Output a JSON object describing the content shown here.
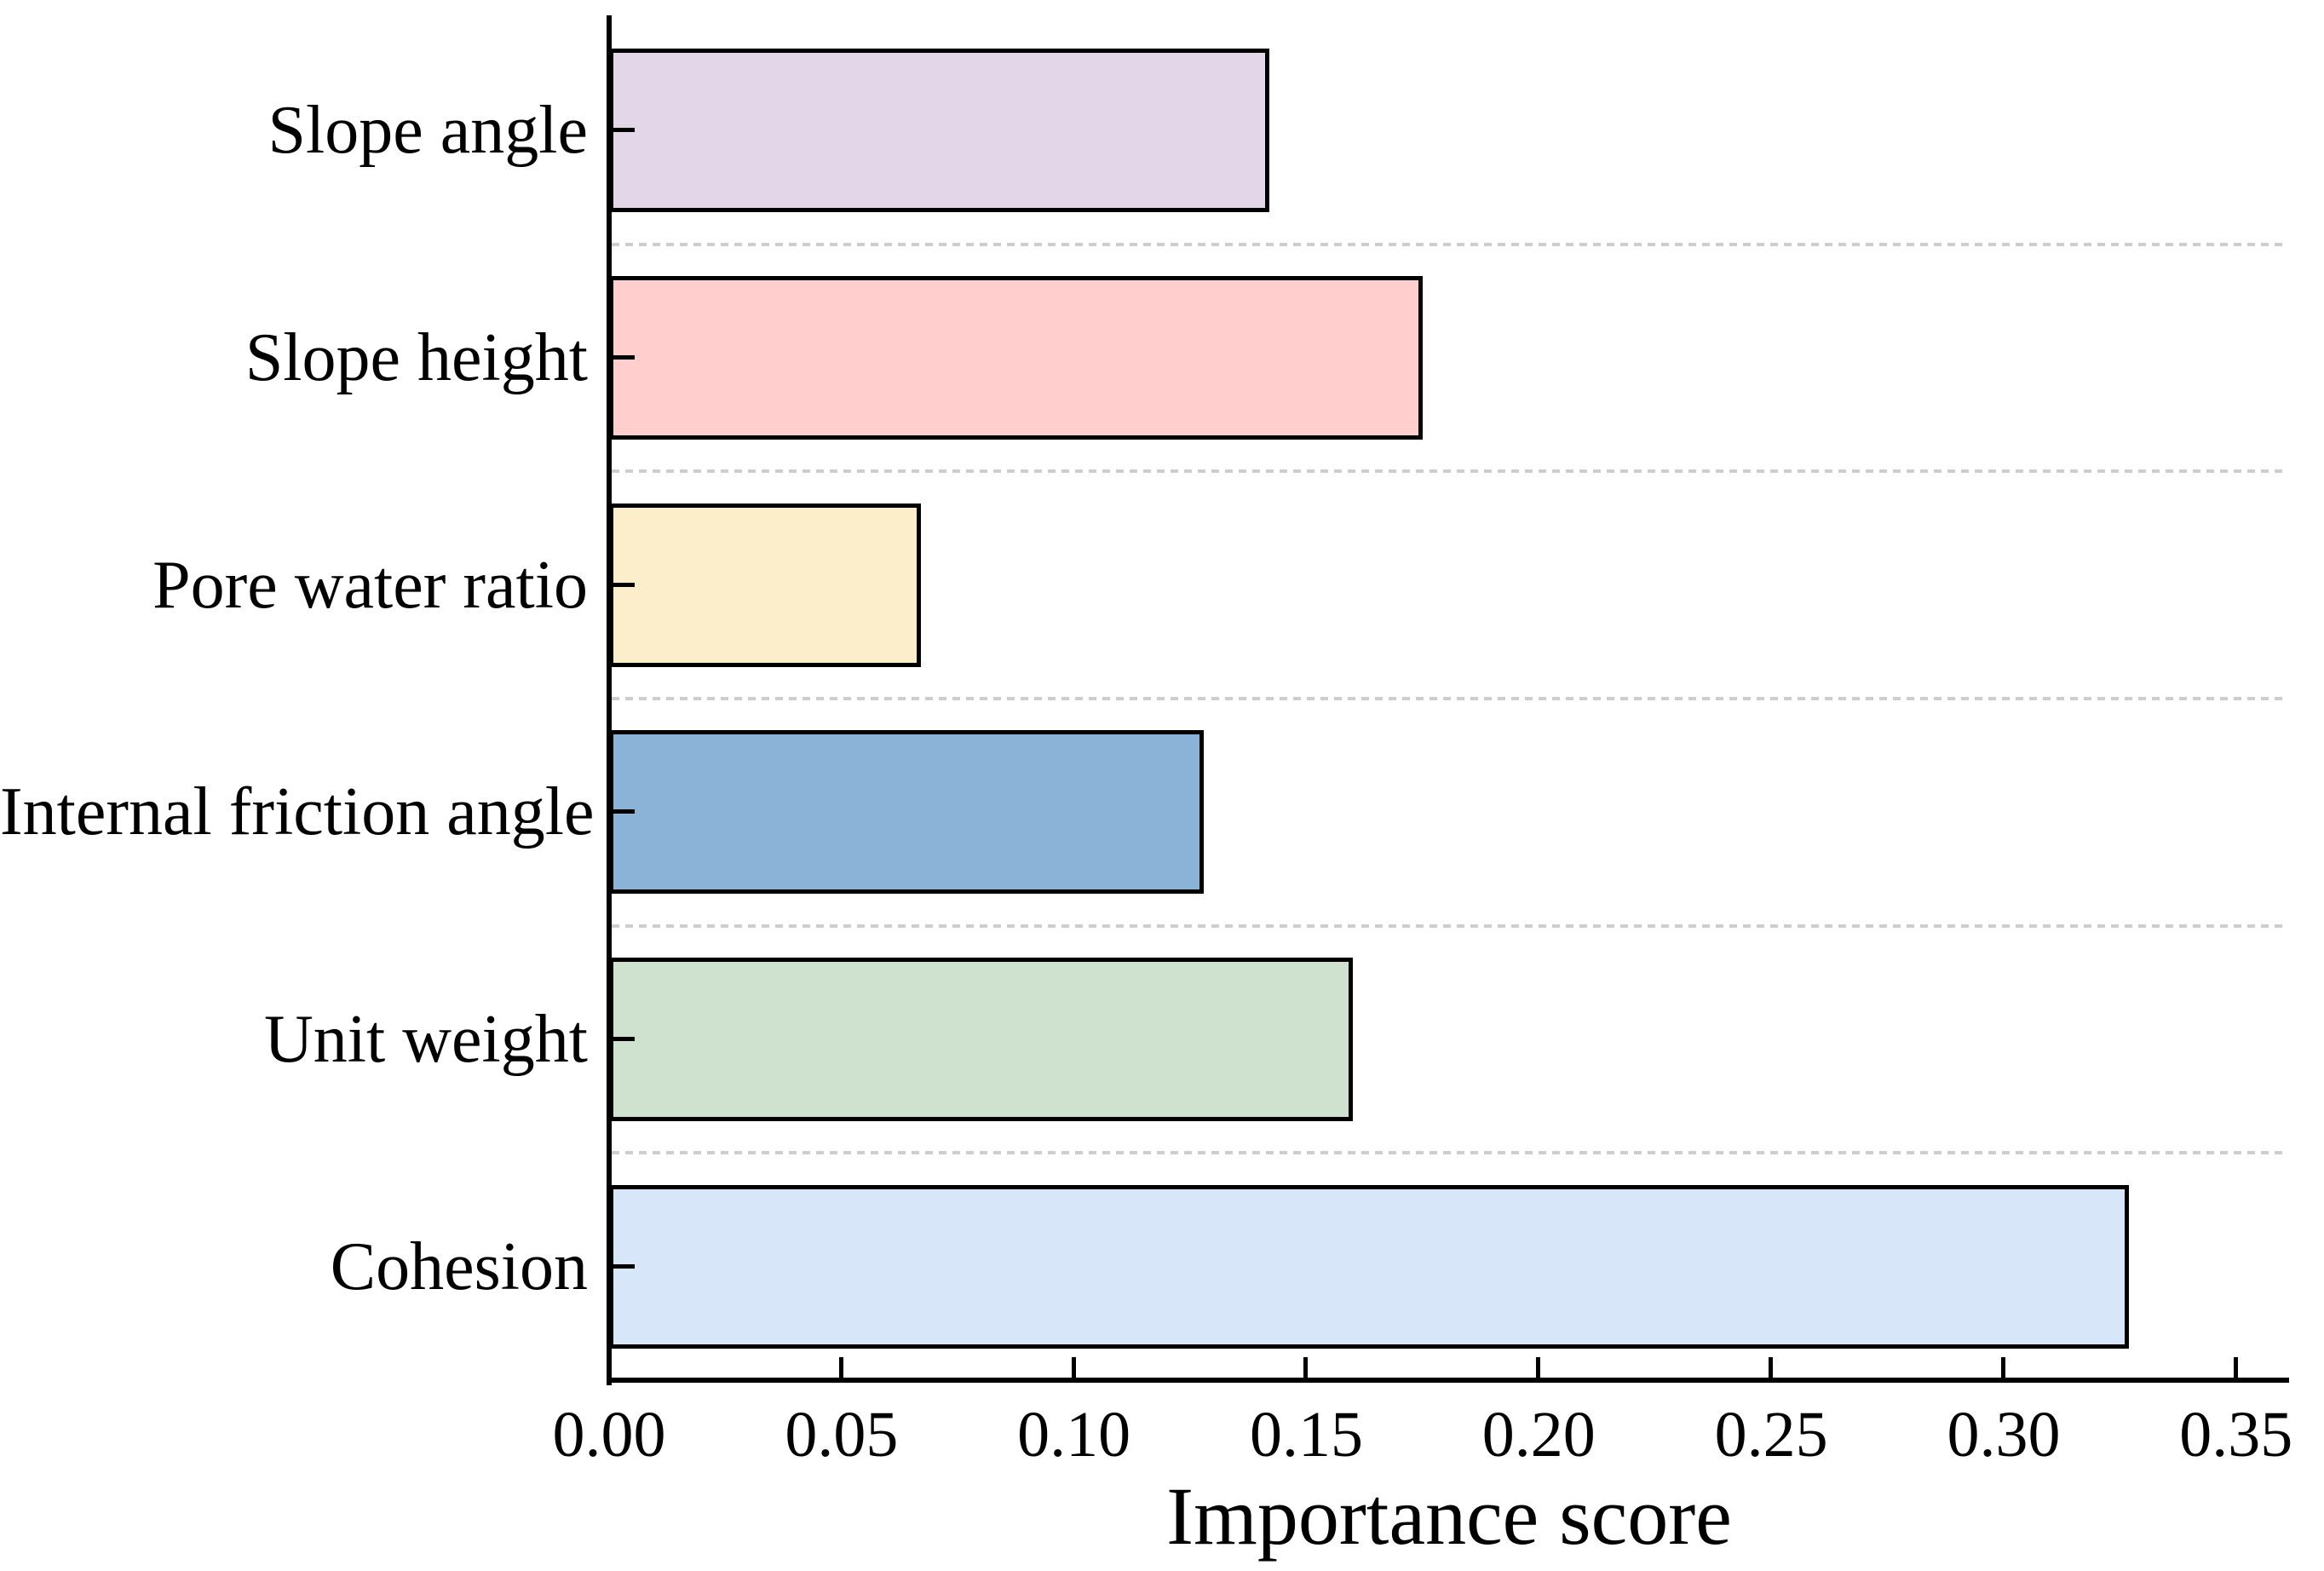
{
  "figure": {
    "background": "#ffffff",
    "axis_color": "#000000",
    "gridline_color": "#cdcdcd",
    "text_color": "#000000"
  },
  "chart_data": {
    "type": "bar",
    "orientation": "horizontal",
    "title": "",
    "xlabel": "Importance score",
    "ylabel": "",
    "categories": [
      "Slope angle",
      "Slope height",
      "Pore water ratio",
      "Internal friction angle",
      "Unit weight",
      "Cohesion"
    ],
    "values": [
      0.142,
      0.175,
      0.067,
      0.128,
      0.16,
      0.327
    ],
    "bar_colors": [
      "#E4D6E9",
      "#FFCECD",
      "#FCEECA",
      "#8AB3D7",
      "#CFE2D0",
      "#D7E6F8"
    ],
    "bar_edge_color": "#000000",
    "x_ticks": [
      {
        "value": 0.0,
        "label": "0.00"
      },
      {
        "value": 0.05,
        "label": "0.05"
      },
      {
        "value": 0.1,
        "label": "0.10"
      },
      {
        "value": 0.15,
        "label": "0.15"
      },
      {
        "value": 0.2,
        "label": "0.20"
      },
      {
        "value": 0.25,
        "label": "0.25"
      },
      {
        "value": 0.3,
        "label": "0.30"
      },
      {
        "value": 0.35,
        "label": "0.35"
      }
    ],
    "xlim": [
      0,
      0.3614
    ],
    "grid": "dashed horizontal separators between category rows",
    "legend": "none",
    "tick_direction": "in"
  }
}
